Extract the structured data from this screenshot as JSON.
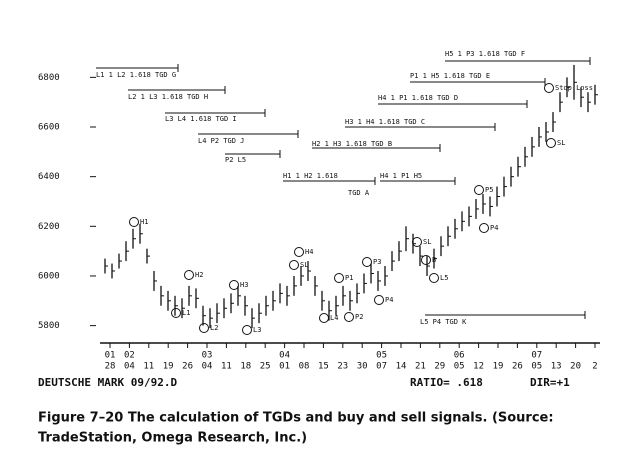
{
  "chart_data": {
    "type": "ohlc",
    "highs": [
      6070,
      6050,
      6090,
      6140,
      6190,
      6210,
      6110,
      6020,
      5960,
      5940,
      5920,
      5910,
      5960,
      5950,
      5880,
      5870,
      5890,
      5910,
      5930,
      5960,
      5920,
      5870,
      5890,
      5920,
      5940,
      5970,
      5960,
      6000,
      6040,
      6060,
      6000,
      5940,
      5900,
      5920,
      5960,
      5940,
      5970,
      6010,
      6050,
      6020,
      6040,
      6100,
      6140,
      6200,
      6170,
      6120,
      6080,
      6110,
      6160,
      6200,
      6230,
      6260,
      6280,
      6310,
      6330,
      6320,
      6360,
      6400,
      6440,
      6480,
      6520,
      6560,
      6600,
      6620,
      6660,
      6740,
      6800,
      6850,
      6760,
      6740,
      6770
    ],
    "lows": [
      6010,
      5990,
      6030,
      6060,
      6110,
      6130,
      6050,
      5940,
      5880,
      5860,
      5840,
      5830,
      5880,
      5870,
      5800,
      5790,
      5810,
      5830,
      5850,
      5880,
      5840,
      5790,
      5810,
      5840,
      5860,
      5890,
      5880,
      5920,
      5960,
      5980,
      5920,
      5860,
      5820,
      5840,
      5880,
      5860,
      5890,
      5930,
      5970,
      5940,
      5960,
      6020,
      6060,
      6100,
      6090,
      6040,
      6000,
      6030,
      6080,
      6120,
      6150,
      6180,
      6200,
      6230,
      6250,
      6240,
      6280,
      6320,
      6360,
      6400,
      6440,
      6480,
      6520,
      6540,
      6580,
      6660,
      6720,
      6710,
      6680,
      6660,
      6690
    ],
    "ylim": [
      5730,
      6890
    ],
    "yticks": [
      5800,
      6000,
      6200,
      6400,
      6600,
      6800
    ],
    "x_day_labels": [
      "28",
      "04",
      "11",
      "19",
      "26",
      "04",
      "11",
      "18",
      "25",
      "01",
      "08",
      "15",
      "23",
      "30",
      "07",
      "14",
      "21",
      "29",
      "05",
      "12",
      "19",
      "26",
      "05",
      "13",
      "20",
      "2"
    ],
    "x_month_labels": [
      "01",
      "02",
      null,
      null,
      null,
      "03",
      null,
      null,
      null,
      "04",
      null,
      null,
      null,
      null,
      "05",
      null,
      null,
      null,
      "06",
      null,
      null,
      null,
      "07",
      null,
      null,
      null
    ],
    "annotations": [
      "L1  1  L2  1.618  TGD G",
      "L2  1  L3  1.618  TGD H",
      "L3      L4    1.618    TGD I",
      "L4       P2          TGD J",
      "P2       L5",
      "H2  1  H3          1.618          TGD B",
      "H3  1  H4            1.618          TGD C",
      "H4  1  P1   1.618           TGD D",
      "P1  1  H5     1.618          TGD E",
      "H5     1     P3      1.618          TGD F",
      "H1  1  H2  1.618",
      "TGD A",
      "H4  1  P1          H5",
      "L5                    P4                           TGD K"
    ],
    "point_labels": [
      "H1",
      "H2",
      "L1",
      "L2",
      "H3",
      "L3",
      "H4",
      "SL",
      "L4",
      "P1",
      "P2",
      "P3",
      "P4",
      "SL",
      "B",
      "L5",
      "P5",
      "P4",
      "SL",
      "Stop Loss"
    ],
    "footer_left": "DEUTSCHE MARK 09/92.D",
    "footer_ratio": "RATIO= .618",
    "footer_dir": "DIR=+1",
    "caption_line1": "Figure 7–20  The calculation of TGDs and buy and sell signals. (Source:",
    "caption_line2": "TradeStation, Omega Research, Inc.)"
  }
}
